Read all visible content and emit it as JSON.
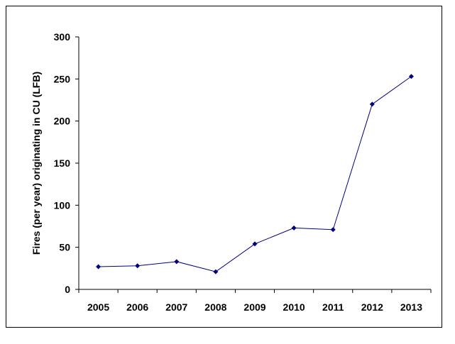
{
  "chart_data": {
    "type": "line",
    "title": "",
    "xlabel": "",
    "ylabel": "Fires (per year) originating in CU (LFB)",
    "categories": [
      "2005",
      "2006",
      "2007",
      "2008",
      "2009",
      "2010",
      "2011",
      "2012",
      "2013"
    ],
    "series": [
      {
        "values": [
          27,
          28,
          33,
          21,
          54,
          73,
          71,
          220,
          253
        ],
        "color": "#000080"
      }
    ],
    "ylim": [
      0,
      300
    ],
    "yticks": [
      0,
      50,
      100,
      150,
      200,
      250,
      300
    ],
    "grid": false,
    "legend": "none",
    "marker": "diamond"
  }
}
